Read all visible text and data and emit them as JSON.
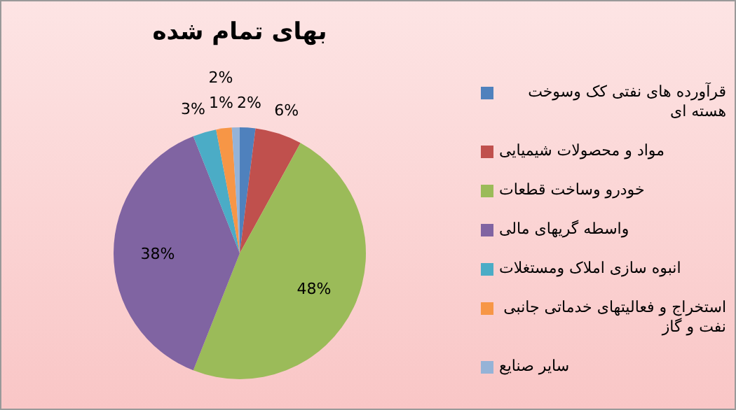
{
  "chart_data": {
    "type": "pie",
    "title": "بهای تمام شده",
    "categories": [
      "قرآورده های نفتی کک وسوخت هسته ای",
      "مواد و محصولات شیمیایی",
      "خودرو وساخت قطعات",
      "واسطه گریهای مالی",
      "انبوه سازی املاک ومستغلات",
      "استخراج و فعالیتهای خدماتی جانبی نفت و گاز",
      "سایر صنایع"
    ],
    "values": [
      2,
      6,
      48,
      38,
      3,
      2,
      1
    ],
    "value_labels": [
      "2%",
      "6%",
      "48%",
      "38%",
      "3%",
      "2%",
      "1%"
    ],
    "colors": [
      "#4f81bd",
      "#c0504d",
      "#9bbb59",
      "#8064a2",
      "#4bacc6",
      "#f79646",
      "#95b3d7"
    ],
    "legend": "right"
  }
}
